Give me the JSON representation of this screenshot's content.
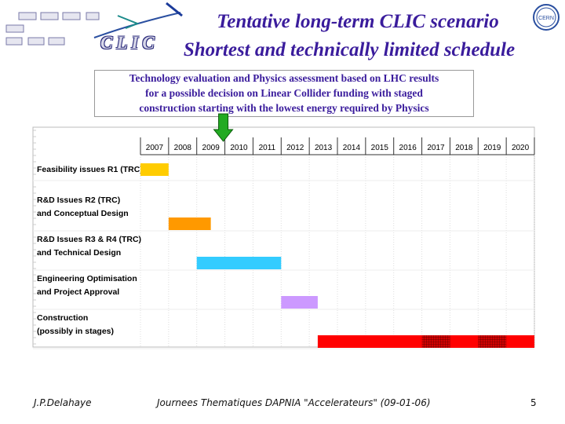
{
  "header": {
    "title": "Tentative long-term CLIC scenario",
    "subtitle": "Shortest and technically limited schedule",
    "logo_text": "CLIC",
    "cern_logo_text": "CERN"
  },
  "callout": {
    "line1": "Technology evaluation and Physics assessment based on LHC results",
    "line2": "for a possible decision on Linear Collider funding with staged",
    "line3": "construction starting with the lowest energy required by Physics"
  },
  "chart_data": {
    "type": "gantt",
    "years": [
      "2007",
      "2008",
      "2009",
      "2010",
      "2011",
      "2012",
      "2013",
      "2014",
      "2015",
      "2016",
      "2017",
      "2018",
      "2019",
      "2020"
    ],
    "decision_arrow_year": 2010,
    "tasks": [
      {
        "label_lines": [
          "Feasibility issues R1 (TRC)"
        ],
        "start": 2007.0,
        "end": 2008.0,
        "color": "#ffcc00"
      },
      {
        "label_lines": [
          "R&D Issues R2 (TRC)",
          "and Conceptual Design"
        ],
        "start": 2008.0,
        "end": 2009.5,
        "color": "#ff9900"
      },
      {
        "label_lines": [
          "R&D Issues R3 & R4 (TRC)",
          "and Technical Design"
        ],
        "start": 2009.0,
        "end": 2012.0,
        "color": "#33ccff"
      },
      {
        "label_lines": [
          "Engineering Optimisation",
          "and Project Approval"
        ],
        "start": 2012.0,
        "end": 2013.3,
        "color": "#cc99ff"
      },
      {
        "label_lines": [
          "Construction",
          "(possibly in stages)"
        ],
        "start": 2013.3,
        "end": 2021.0,
        "color": "#ff0000",
        "hatched": [
          [
            2017.0,
            2018.0
          ],
          [
            2019.0,
            2020.0
          ]
        ]
      }
    ]
  },
  "footer": {
    "author": "J.P.Delahaye",
    "event": "Journees Thematiques DAPNIA \"Accelerateurs\" (09-01-06)",
    "page": "5"
  }
}
